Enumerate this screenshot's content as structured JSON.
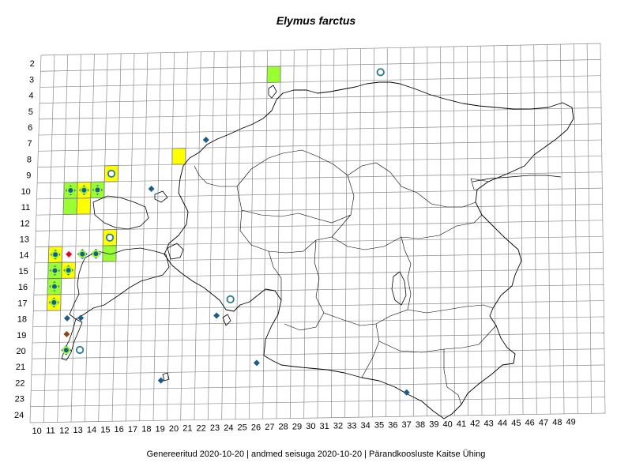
{
  "title": "Elymus farctus",
  "footer": "Genereeritud 2020-10-20  |  andmed seisuga 2020-10-20  |  Pärandkoosluste Kaitse Ühing",
  "colors": {
    "grid": "#8c8c8c",
    "coast": "#000000",
    "cell_yellow": "#ffff00",
    "cell_green": "#99ff33",
    "marker_diamond": "#1a5c8a",
    "marker_ring": "#2a7a94",
    "marker_red": "#e8001c",
    "marker_brown": "#8b4513"
  },
  "row_labels": [
    "2",
    "3",
    "4",
    "5",
    "6",
    "7",
    "8",
    "9",
    "10",
    "11",
    "12",
    "13",
    "14",
    "15",
    "16",
    "17",
    "18",
    "19",
    "20",
    "21",
    "22",
    "23",
    "24"
  ],
  "col_labels": [
    "10",
    "11",
    "12",
    "13",
    "14",
    "15",
    "16",
    "17",
    "18",
    "19",
    "20",
    "21",
    "22",
    "23",
    "24",
    "25",
    "26",
    "27",
    "28",
    "29",
    "30",
    "31",
    "32",
    "33",
    "34",
    "35",
    "36",
    "37",
    "38",
    "39",
    "40",
    "41",
    "42",
    "43",
    "44",
    "45",
    "46",
    "47",
    "48",
    "49"
  ],
  "cells": [
    {
      "col": 27,
      "row": 3,
      "fill": "green"
    },
    {
      "col": 20,
      "row": 8,
      "fill": "yellow"
    },
    {
      "col": 15,
      "row": 9,
      "fill": "yellow"
    },
    {
      "col": 12,
      "row": 10,
      "fill": "green"
    },
    {
      "col": 13,
      "row": 10,
      "fill": "yellow"
    },
    {
      "col": 14,
      "row": 10,
      "fill": "green"
    },
    {
      "col": 12,
      "row": 11,
      "fill": "green"
    },
    {
      "col": 13,
      "row": 11,
      "fill": "yellow"
    },
    {
      "col": 15,
      "row": 13,
      "fill": "yellow"
    },
    {
      "col": 15,
      "row": 14,
      "fill": "green"
    },
    {
      "col": 11,
      "row": 14,
      "fill": "yellow"
    },
    {
      "col": 11,
      "row": 15,
      "fill": "green"
    },
    {
      "col": 12,
      "row": 15,
      "fill": "yellow"
    },
    {
      "col": 11,
      "row": 16,
      "fill": "green"
    },
    {
      "col": 11,
      "row": 17,
      "fill": "yellow"
    }
  ],
  "markers": [
    {
      "col": 15,
      "row": 9,
      "type": "ring"
    },
    {
      "col": 12,
      "row": 10,
      "type": "diamond-ring"
    },
    {
      "col": 13,
      "row": 10,
      "type": "diamond-ring"
    },
    {
      "col": 14,
      "row": 10,
      "type": "diamond-ring"
    },
    {
      "col": 15,
      "row": 13,
      "type": "ring"
    },
    {
      "col": 11,
      "row": 14,
      "type": "diamond-ring"
    },
    {
      "col": 12,
      "row": 14,
      "type": "red-diamond"
    },
    {
      "col": 13,
      "row": 14,
      "type": "diamond-ring"
    },
    {
      "col": 14,
      "row": 14,
      "type": "diamond-ring"
    },
    {
      "col": 11,
      "row": 15,
      "type": "diamond-ring"
    },
    {
      "col": 12,
      "row": 15,
      "type": "diamond-ring"
    },
    {
      "col": 11,
      "row": 16,
      "type": "diamond-ring"
    },
    {
      "col": 11,
      "row": 17,
      "type": "diamond-ring"
    },
    {
      "col": 12,
      "row": 18,
      "type": "diamond"
    },
    {
      "col": 13,
      "row": 18,
      "type": "diamond"
    },
    {
      "col": 12,
      "row": 19,
      "type": "brown-diamond"
    },
    {
      "col": 12,
      "row": 20,
      "type": "diamond-ring"
    },
    {
      "col": 13,
      "row": 20,
      "type": "ring"
    },
    {
      "col": 18,
      "row": 10,
      "type": "diamond"
    },
    {
      "col": 22,
      "row": 7,
      "type": "diamond"
    },
    {
      "col": 35,
      "row": 3,
      "type": "ring"
    },
    {
      "col": 24,
      "row": 17,
      "type": "ring"
    },
    {
      "col": 23,
      "row": 18,
      "type": "diamond"
    },
    {
      "col": 26,
      "row": 21,
      "type": "diamond"
    },
    {
      "col": 19,
      "row": 22,
      "type": "diamond"
    },
    {
      "col": 37,
      "row": 23,
      "type": "diamond"
    }
  ]
}
